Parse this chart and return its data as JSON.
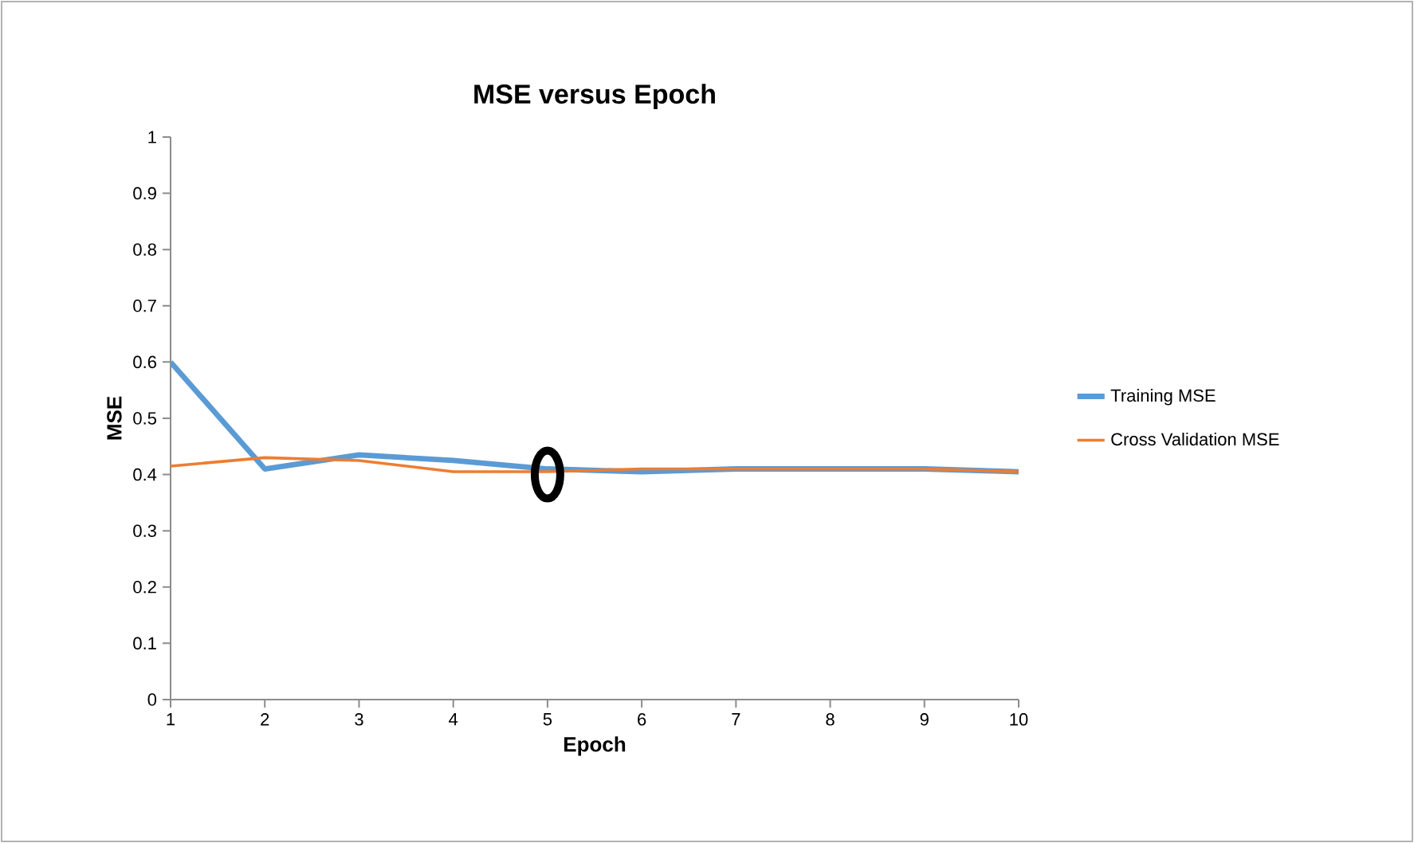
{
  "chart_data": {
    "type": "line",
    "title": "MSE versus Epoch",
    "xlabel": "Epoch",
    "ylabel": "MSE",
    "x": [
      1,
      2,
      3,
      4,
      5,
      6,
      7,
      8,
      9,
      10
    ],
    "series": [
      {
        "name": "Training MSE",
        "color": "#5b9bd5",
        "values": [
          0.6,
          0.41,
          0.435,
          0.425,
          0.41,
          0.405,
          0.41,
          0.41,
          0.41,
          0.405
        ]
      },
      {
        "name": "Cross Validation MSE",
        "color": "#ed7d31",
        "values": [
          0.415,
          0.43,
          0.425,
          0.405,
          0.405,
          0.41,
          0.41,
          0.41,
          0.41,
          0.405
        ]
      }
    ],
    "xlim": [
      1,
      10
    ],
    "xticks": [
      1,
      2,
      3,
      4,
      5,
      6,
      7,
      8,
      9,
      10
    ],
    "ylim": [
      0,
      1
    ],
    "yticks": [
      0,
      0.1,
      0.2,
      0.3,
      0.4,
      0.5,
      0.6,
      0.7,
      0.8,
      0.9,
      1
    ],
    "grid": false,
    "legend": "right",
    "marker": "none",
    "line_style": "solid"
  }
}
